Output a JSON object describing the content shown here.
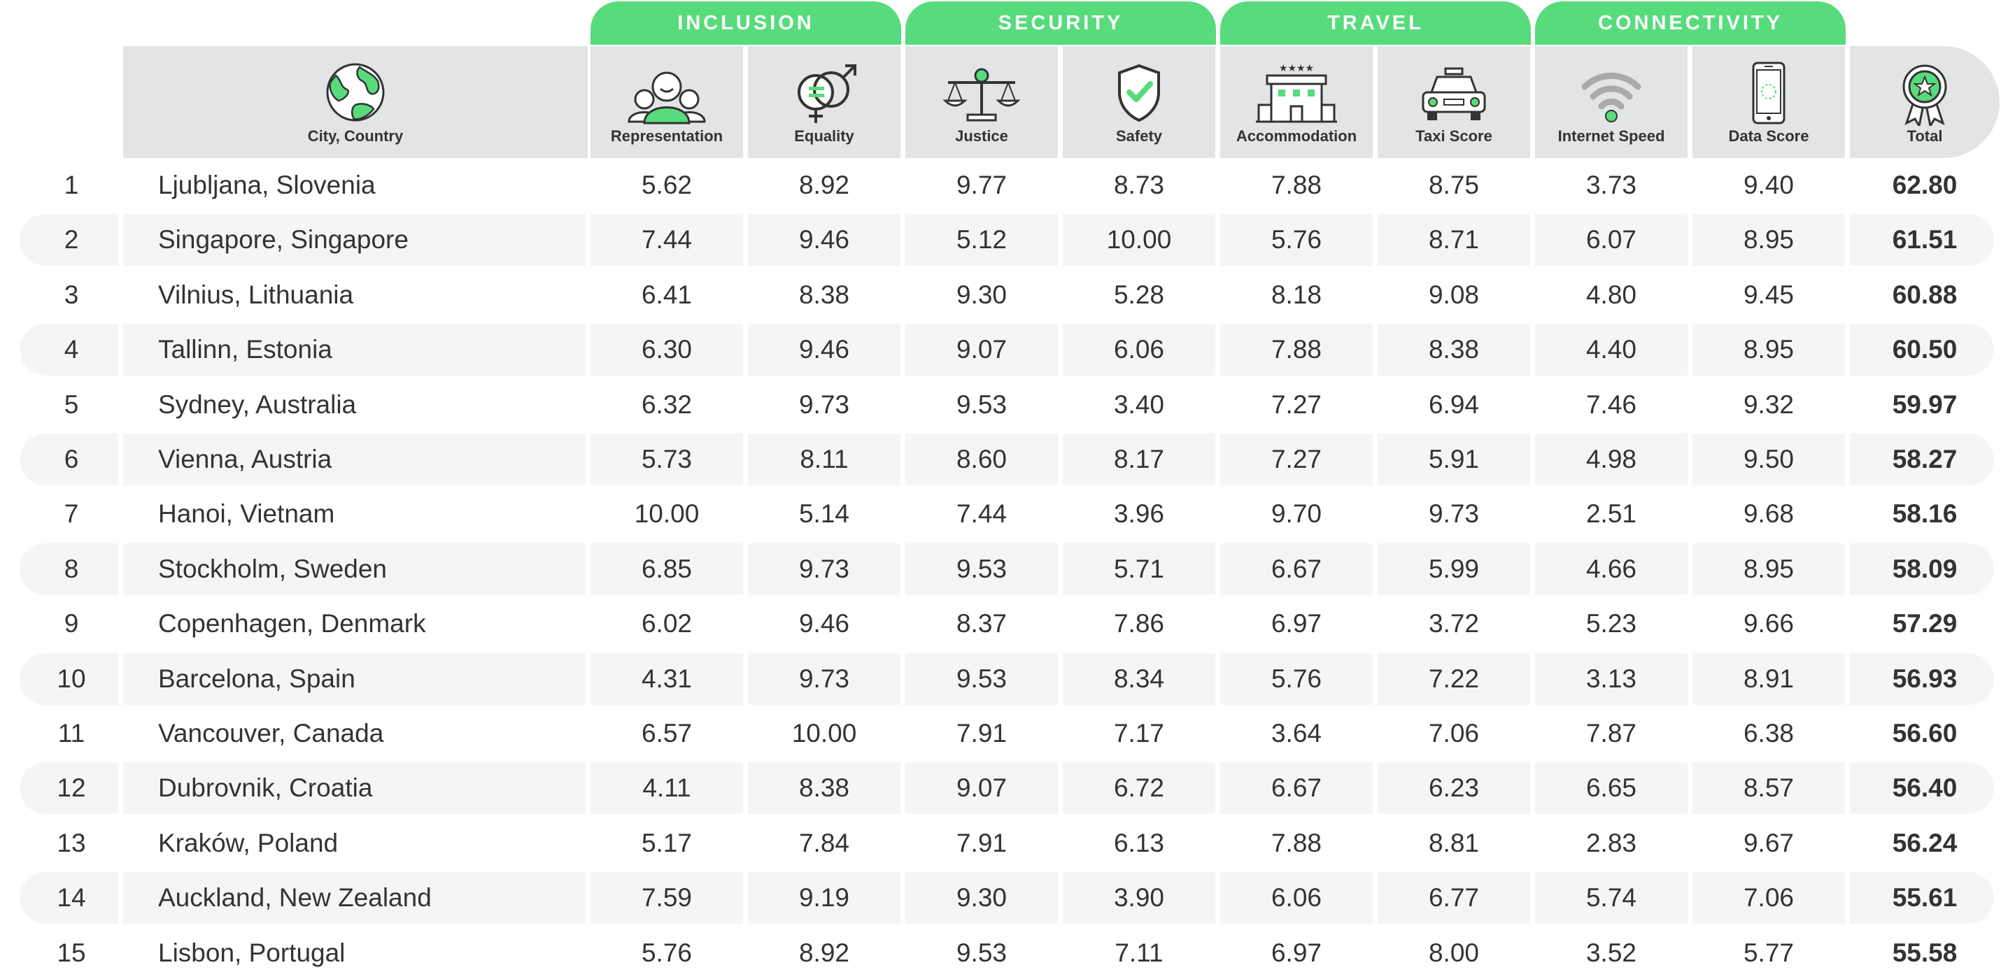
{
  "groups": [
    {
      "key": "inclusion",
      "label": "INCLUSION"
    },
    {
      "key": "security",
      "label": "SECURITY"
    },
    {
      "key": "travel",
      "label": "TRAVEL"
    },
    {
      "key": "connectivity",
      "label": "CONNECTIVITY"
    }
  ],
  "columns": {
    "city": "City, Country",
    "representation": "Representation",
    "equality": "Equality",
    "justice": "Justice",
    "safety": "Safety",
    "accommodation": "Accommodation",
    "taxi": "Taxi Score",
    "internet": "Internet Speed",
    "data": "Data Score",
    "total": "Total"
  },
  "icons": {
    "city": "globe-icon",
    "representation": "group-people-icon",
    "equality": "gender-symbols-icon",
    "justice": "scales-icon",
    "safety": "shield-check-icon",
    "accommodation": "hotel-icon",
    "taxi": "taxi-icon",
    "internet": "wifi-icon",
    "data": "smartphone-icon",
    "total": "award-badge-icon"
  },
  "colors": {
    "accent": "#58db7c",
    "header_bg": "#e2e4e6",
    "row_alt": "#f5f5f5",
    "text": "#333333"
  },
  "chart_data": {
    "type": "table",
    "headers": [
      "",
      "City, Country",
      "Representation",
      "Equality",
      "Justice",
      "Safety",
      "Accommodation",
      "Taxi Score",
      "Internet Speed",
      "Data Score",
      "Total"
    ],
    "rows": [
      {
        "rank": "1",
        "city": "Ljubljana, Slovenia",
        "values": [
          "5.62",
          "8.92",
          "9.77",
          "8.73",
          "7.88",
          "8.75",
          "3.73",
          "9.40"
        ],
        "total": "62.80"
      },
      {
        "rank": "2",
        "city": "Singapore, Singapore",
        "values": [
          "7.44",
          "9.46",
          "5.12",
          "10.00",
          "5.76",
          "8.71",
          "6.07",
          "8.95"
        ],
        "total": "61.51"
      },
      {
        "rank": "3",
        "city": "Vilnius, Lithuania",
        "values": [
          "6.41",
          "8.38",
          "9.30",
          "5.28",
          "8.18",
          "9.08",
          "4.80",
          "9.45"
        ],
        "total": "60.88"
      },
      {
        "rank": "4",
        "city": "Tallinn, Estonia",
        "values": [
          "6.30",
          "9.46",
          "9.07",
          "6.06",
          "7.88",
          "8.38",
          "4.40",
          "8.95"
        ],
        "total": "60.50"
      },
      {
        "rank": "5",
        "city": "Sydney, Australia",
        "values": [
          "6.32",
          "9.73",
          "9.53",
          "3.40",
          "7.27",
          "6.94",
          "7.46",
          "9.32"
        ],
        "total": "59.97"
      },
      {
        "rank": "6",
        "city": "Vienna, Austria",
        "values": [
          "5.73",
          "8.11",
          "8.60",
          "8.17",
          "7.27",
          "5.91",
          "4.98",
          "9.50"
        ],
        "total": "58.27"
      },
      {
        "rank": "7",
        "city": "Hanoi, Vietnam",
        "values": [
          "10.00",
          "5.14",
          "7.44",
          "3.96",
          "9.70",
          "9.73",
          "2.51",
          "9.68"
        ],
        "total": "58.16"
      },
      {
        "rank": "8",
        "city": "Stockholm, Sweden",
        "values": [
          "6.85",
          "9.73",
          "9.53",
          "5.71",
          "6.67",
          "5.99",
          "4.66",
          "8.95"
        ],
        "total": "58.09"
      },
      {
        "rank": "9",
        "city": "Copenhagen, Denmark",
        "values": [
          "6.02",
          "9.46",
          "8.37",
          "7.86",
          "6.97",
          "3.72",
          "5.23",
          "9.66"
        ],
        "total": "57.29"
      },
      {
        "rank": "10",
        "city": "Barcelona, Spain",
        "values": [
          "4.31",
          "9.73",
          "9.53",
          "8.34",
          "5.76",
          "7.22",
          "3.13",
          "8.91"
        ],
        "total": "56.93"
      },
      {
        "rank": "11",
        "city": "Vancouver, Canada",
        "values": [
          "6.57",
          "10.00",
          "7.91",
          "7.17",
          "3.64",
          "7.06",
          "7.87",
          "6.38"
        ],
        "total": "56.60"
      },
      {
        "rank": "12",
        "city": "Dubrovnik, Croatia",
        "values": [
          "4.11",
          "8.38",
          "9.07",
          "6.72",
          "6.67",
          "6.23",
          "6.65",
          "8.57"
        ],
        "total": "56.40"
      },
      {
        "rank": "13",
        "city": "Kraków, Poland",
        "values": [
          "5.17",
          "7.84",
          "7.91",
          "6.13",
          "7.88",
          "8.81",
          "2.83",
          "9.67"
        ],
        "total": "56.24"
      },
      {
        "rank": "14",
        "city": "Auckland, New Zealand",
        "values": [
          "7.59",
          "9.19",
          "9.30",
          "3.90",
          "6.06",
          "6.77",
          "5.74",
          "7.06"
        ],
        "total": "55.61"
      },
      {
        "rank": "15",
        "city": "Lisbon, Portugal",
        "values": [
          "5.76",
          "8.92",
          "9.53",
          "7.11",
          "6.97",
          "8.00",
          "3.52",
          "5.77"
        ],
        "total": "55.58"
      }
    ]
  }
}
